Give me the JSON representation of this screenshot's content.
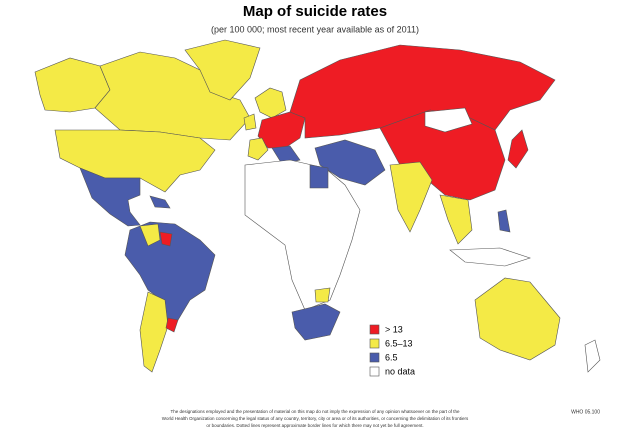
{
  "header": {
    "title": "Map of suicide rates",
    "subtitle": "(per 100 000; most recent year available as of 2011)"
  },
  "legend": [
    {
      "label": "> 13",
      "color": "#ee1c24"
    },
    {
      "label": "6.5–13",
      "color": "#f4ea46"
    },
    {
      "label": "6.5",
      "color": "#4a5cab"
    },
    {
      "label": "no data",
      "color": "#ffffff"
    }
  ],
  "footer": {
    "disclaimer": [
      "The designations employed and the presentation of material on this map do not imply the expression of any opinion whatsoever on the part of the",
      "World Health Organization concerning the legal status of any country, territory, city or area or of its authorities, or concerning the delimitation of its frontiers",
      "or boundaries. Dotted lines represent approximate border lines for which there may not yet be full agreement."
    ],
    "code": "WHO 05.100"
  }
}
